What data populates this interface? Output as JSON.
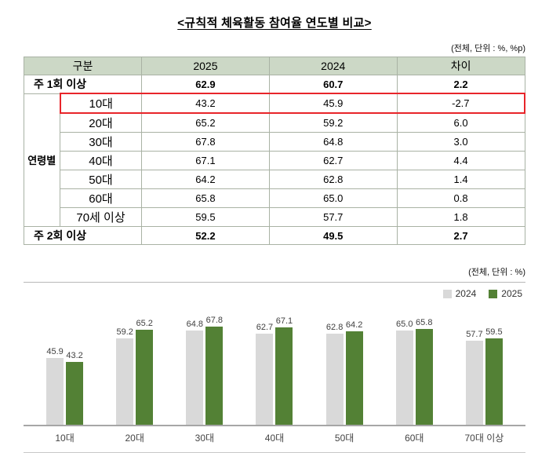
{
  "page": {
    "title": "<규칙적 체육활동 참여율 연도별 비교>"
  },
  "table": {
    "unit_note": "(전체, 단위 : %, %p)",
    "header": {
      "category": "구분",
      "y2025": "2025",
      "y2024": "2024",
      "diff": "차이"
    },
    "group_label": "연령별",
    "rows": [
      {
        "label": "주 1회 이상",
        "v2025": "62.9",
        "v2024": "60.7",
        "diff": "2.2",
        "type": "summary",
        "bold": true,
        "highlight": false
      },
      {
        "label": "10대",
        "v2025": "43.2",
        "v2024": "45.9",
        "diff": "-2.7",
        "type": "age",
        "bold": false,
        "highlight": true
      },
      {
        "label": "20대",
        "v2025": "65.2",
        "v2024": "59.2",
        "diff": "6.0",
        "type": "age",
        "bold": false,
        "highlight": false
      },
      {
        "label": "30대",
        "v2025": "67.8",
        "v2024": "64.8",
        "diff": "3.0",
        "type": "age",
        "bold": false,
        "highlight": false
      },
      {
        "label": "40대",
        "v2025": "67.1",
        "v2024": "62.7",
        "diff": "4.4",
        "type": "age",
        "bold": false,
        "highlight": false
      },
      {
        "label": "50대",
        "v2025": "64.2",
        "v2024": "62.8",
        "diff": "1.4",
        "type": "age",
        "bold": false,
        "highlight": false
      },
      {
        "label": "60대",
        "v2025": "65.8",
        "v2024": "65.0",
        "diff": "0.8",
        "type": "age",
        "bold": false,
        "highlight": false
      },
      {
        "label": "70세 이상",
        "v2025": "59.5",
        "v2024": "57.7",
        "diff": "1.8",
        "type": "age",
        "bold": false,
        "highlight": false
      },
      {
        "label": "주 2회 이상",
        "v2025": "52.2",
        "v2024": "49.5",
        "diff": "2.7",
        "type": "summary",
        "bold": true,
        "highlight": false
      }
    ]
  },
  "chart": {
    "unit_note": "(전체, 단위 : %)",
    "legend": [
      {
        "label": "2024",
        "color": "#d9d9d9"
      },
      {
        "label": "2025",
        "color": "#538135"
      }
    ]
  },
  "chart_data": {
    "type": "bar",
    "categories": [
      "10대",
      "20대",
      "30대",
      "40대",
      "50대",
      "60대",
      "70대 이상"
    ],
    "series": [
      {
        "name": "2024",
        "color": "#d9d9d9",
        "values": [
          45.9,
          59.2,
          64.8,
          62.7,
          62.8,
          65.0,
          57.7
        ]
      },
      {
        "name": "2025",
        "color": "#538135",
        "values": [
          43.2,
          65.2,
          67.8,
          67.1,
          64.2,
          65.8,
          59.5
        ]
      }
    ],
    "title": "규칙적 체육활동 참여율 연도별 비교",
    "xlabel": "",
    "ylabel": "",
    "ylim": [
      0,
      75
    ],
    "unit": "%",
    "grid": false,
    "legend_position": "top-right"
  },
  "colors": {
    "table_header_bg": "#ccd8c6",
    "table_border": "#a9b2a4",
    "highlight_border": "#e8252a",
    "bar_2024": "#d9d9d9",
    "bar_2025": "#538135",
    "baseline": "#a6a6a6"
  }
}
